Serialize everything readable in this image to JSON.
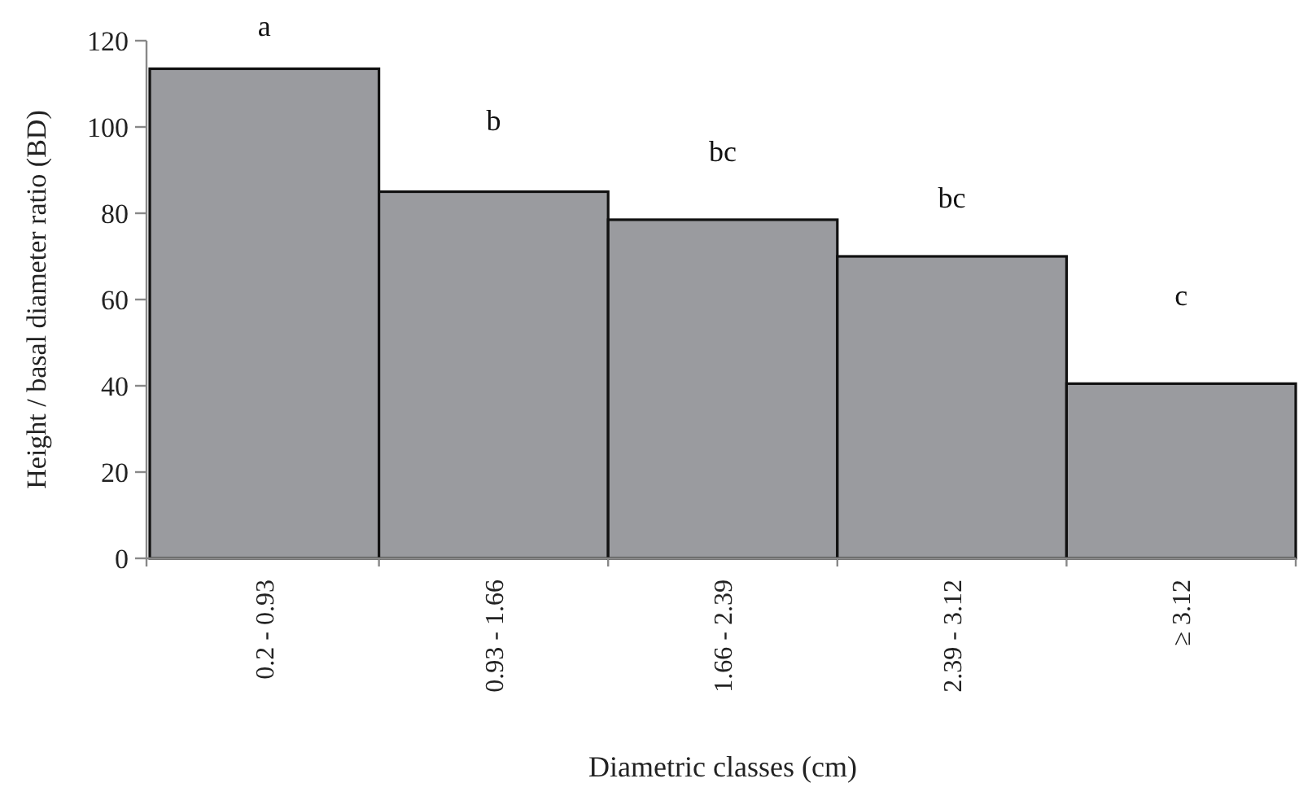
{
  "chart_data": {
    "type": "bar",
    "xlabel": "Diametric classes (cm)",
    "ylabel": "Height / basal diameter ratio (BD)",
    "categories": [
      "0.2 - 0.93",
      "0.93 - 1.66",
      "1.66 - 2.39",
      "2.39 - 3.12",
      "≥ 3.12"
    ],
    "values": [
      113.5,
      85,
      78.5,
      70,
      40.5
    ],
    "color": "#9a9b9f",
    "ylim": [
      0,
      120
    ],
    "yticks": [
      0,
      20,
      40,
      60,
      80,
      100,
      120
    ],
    "annotations": [
      "a",
      "b",
      "bc",
      "bc",
      "c"
    ]
  }
}
